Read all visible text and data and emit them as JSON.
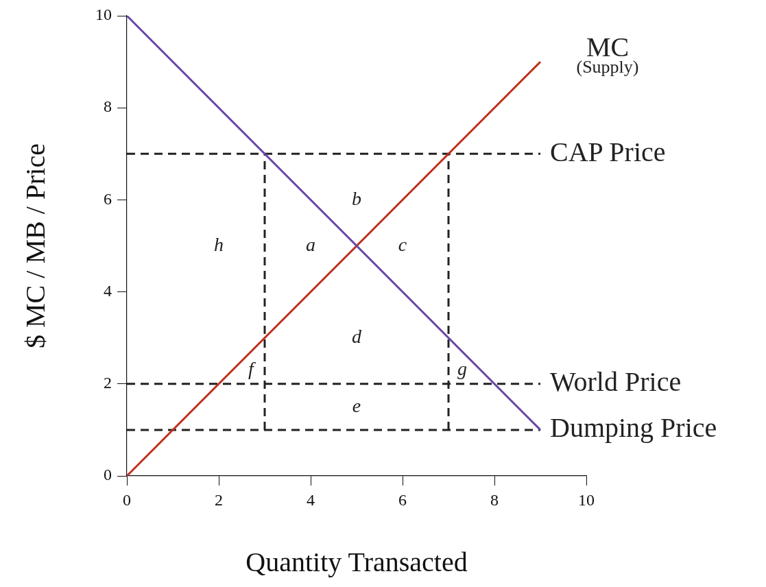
{
  "chart_data": {
    "type": "line",
    "xlabel": "Quantity Transacted",
    "ylabel": "$ MC / MB / Price",
    "xlim": [
      0,
      10
    ],
    "ylim": [
      0,
      10
    ],
    "xticks": [
      0,
      2,
      4,
      6,
      8,
      10
    ],
    "yticks": [
      0,
      2,
      4,
      6,
      8,
      10
    ],
    "grid": false,
    "legend": false,
    "marker": "none",
    "series": [
      {
        "x": [
          0,
          9
        ],
        "values": [
          10,
          1
        ],
        "color": "#6a46a8",
        "line_style": "solid"
      },
      {
        "name": "MC",
        "x": [
          0,
          9
        ],
        "values": [
          0,
          9
        ],
        "color": "#c0311f",
        "line_style": "solid"
      },
      {
        "name": "CAP Price",
        "x": [
          0,
          9
        ],
        "values": [
          7,
          7
        ],
        "color": "#222222",
        "line_style": "dashed"
      },
      {
        "name": "World Price",
        "x": [
          0,
          9
        ],
        "values": [
          2,
          2
        ],
        "color": "#222222",
        "line_style": "dashed"
      },
      {
        "name": "Dumping Price",
        "x": [
          0,
          9
        ],
        "values": [
          1,
          1
        ],
        "color": "#222222",
        "line_style": "dashed"
      },
      {
        "x": [
          3,
          3
        ],
        "values": [
          1,
          7
        ],
        "color": "#222222",
        "line_style": "dashed"
      },
      {
        "x": [
          7,
          7
        ],
        "values": [
          1,
          7
        ],
        "color": "#222222",
        "line_style": "dashed"
      }
    ],
    "annotations": [
      "(Supply)",
      "h",
      "a",
      "b",
      "c",
      "d",
      "e",
      "f",
      "g"
    ]
  }
}
